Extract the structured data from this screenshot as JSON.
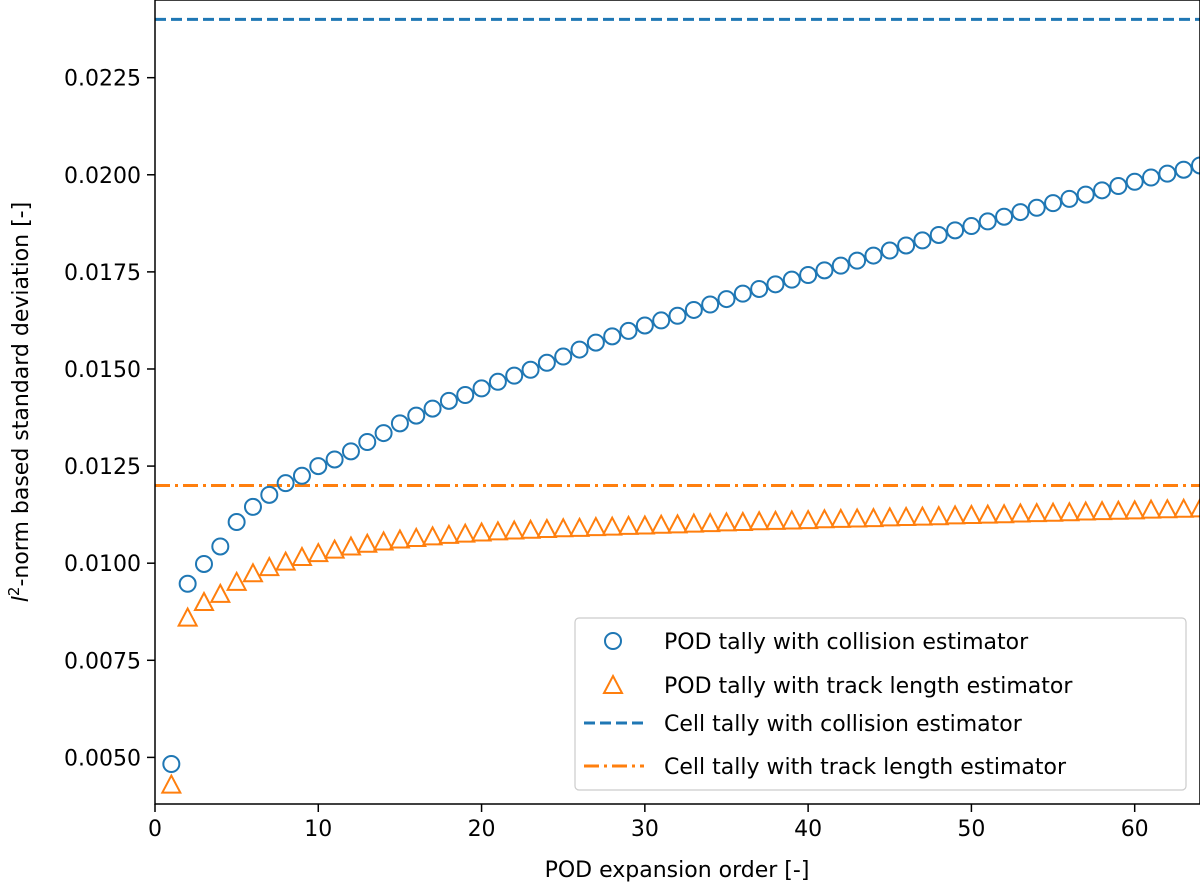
{
  "chart_data": {
    "type": "scatter",
    "xlabel": "POD expansion order [-]",
    "ylabel_prefix": "l",
    "ylabel_sup": "2",
    "ylabel_rest": "-norm based standard deviation [-]",
    "xlim": [
      0,
      64
    ],
    "ylim": [
      0.0038,
      0.0245
    ],
    "x_ticks": [
      0,
      10,
      20,
      30,
      40,
      50,
      60
    ],
    "y_ticks": [
      0.005,
      0.0075,
      0.01,
      0.0125,
      0.015,
      0.0175,
      0.02,
      0.0225
    ],
    "x_tick_labels": [
      "0",
      "10",
      "20",
      "30",
      "40",
      "50",
      "60"
    ],
    "y_tick_labels": [
      "0.0050",
      "0.0075",
      "0.0100",
      "0.0125",
      "0.0150",
      "0.0175",
      "0.0200",
      "0.0225"
    ],
    "grid": false,
    "legend_position": "bottom-right",
    "colors": {
      "blue": "#1f77b4",
      "orange": "#ff7f0e"
    },
    "series": [
      {
        "name": "POD tally with collision estimator",
        "marker": "circle",
        "color": "#1f77b4",
        "x": [
          1,
          2,
          3,
          4,
          5,
          6,
          7,
          8,
          9,
          10,
          11,
          12,
          13,
          14,
          15,
          16,
          17,
          18,
          19,
          20,
          21,
          22,
          23,
          24,
          25,
          26,
          27,
          28,
          29,
          30,
          31,
          32,
          33,
          34,
          35,
          36,
          37,
          38,
          39,
          40,
          41,
          42,
          43,
          44,
          45,
          46,
          47,
          48,
          49,
          50,
          51,
          52,
          53,
          54,
          55,
          56,
          57,
          58,
          59,
          60,
          61,
          62,
          63,
          64
        ],
        "y": [
          0.00483,
          0.00947,
          0.00998,
          0.01043,
          0.01106,
          0.01145,
          0.01176,
          0.01206,
          0.01225,
          0.0125,
          0.01267,
          0.01288,
          0.01312,
          0.01335,
          0.0136,
          0.0138,
          0.01398,
          0.01418,
          0.01433,
          0.0145,
          0.01467,
          0.01483,
          0.01498,
          0.01516,
          0.01532,
          0.0155,
          0.01568,
          0.01584,
          0.01598,
          0.01612,
          0.01625,
          0.01637,
          0.01652,
          0.01666,
          0.0168,
          0.01694,
          0.01706,
          0.01718,
          0.0173,
          0.01742,
          0.01754,
          0.01766,
          0.01779,
          0.01792,
          0.01805,
          0.01818,
          0.01831,
          0.01845,
          0.01857,
          0.01868,
          0.0188,
          0.01892,
          0.01904,
          0.01915,
          0.01927,
          0.01938,
          0.01949,
          0.0196,
          0.01971,
          0.01982,
          0.01993,
          0.02003,
          0.02013,
          0.02024
        ]
      },
      {
        "name": "POD tally with track length estimator",
        "marker": "triangle",
        "color": "#ff7f0e",
        "x": [
          1,
          2,
          3,
          4,
          5,
          6,
          7,
          8,
          9,
          10,
          11,
          12,
          13,
          14,
          15,
          16,
          17,
          18,
          19,
          20,
          21,
          22,
          23,
          24,
          25,
          26,
          27,
          28,
          29,
          30,
          31,
          32,
          33,
          34,
          35,
          36,
          37,
          38,
          39,
          40,
          41,
          42,
          43,
          44,
          45,
          46,
          47,
          48,
          49,
          50,
          51,
          52,
          53,
          54,
          55,
          56,
          57,
          58,
          59,
          60,
          61,
          62,
          63,
          64
        ],
        "y": [
          0.0043,
          0.0086,
          0.009,
          0.00921,
          0.00952,
          0.00974,
          0.0099,
          0.01004,
          0.01016,
          0.01026,
          0.01035,
          0.01043,
          0.0105,
          0.01056,
          0.01061,
          0.01065,
          0.01069,
          0.01073,
          0.01076,
          0.01079,
          0.01082,
          0.01084,
          0.01086,
          0.01088,
          0.0109,
          0.01091,
          0.01093,
          0.01094,
          0.01096,
          0.01097,
          0.01099,
          0.011,
          0.01102,
          0.01103,
          0.01105,
          0.01106,
          0.01108,
          0.01109,
          0.0111,
          0.01111,
          0.01113,
          0.01114,
          0.01115,
          0.01116,
          0.01118,
          0.01119,
          0.0112,
          0.01121,
          0.01123,
          0.01124,
          0.01125,
          0.01126,
          0.01128,
          0.01129,
          0.0113,
          0.01131,
          0.01133,
          0.01134,
          0.01135,
          0.01136,
          0.01138,
          0.01139,
          0.0114,
          0.01141
        ]
      },
      {
        "name": "Cell tally with collision estimator",
        "marker": "hline-dashed",
        "color": "#1f77b4",
        "y": 0.024
      },
      {
        "name": "Cell tally with track length estimator",
        "marker": "hline-dashdot",
        "color": "#ff7f0e",
        "y": 0.012
      }
    ]
  }
}
